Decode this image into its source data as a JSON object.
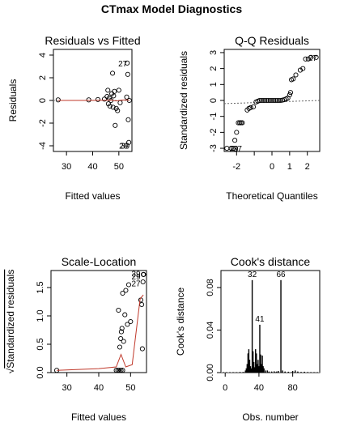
{
  "page_title": "CTmax Model Diagnostics",
  "chart_data": [
    {
      "id": "rvf",
      "type": "scatter",
      "title": "Residuals vs Fitted",
      "xlabel": "Fitted values",
      "ylabel": "Residuals",
      "xlim": [
        25,
        55
      ],
      "ylim": [
        -4.5,
        4.5
      ],
      "xticks": [
        30,
        40,
        50
      ],
      "yticks": [
        -4,
        -2,
        0,
        2,
        4
      ],
      "hline": 0,
      "points": [
        {
          "x": 26.8,
          "y": 0.05
        },
        {
          "x": 38.5,
          "y": 0.05
        },
        {
          "x": 42.0,
          "y": 0.08
        },
        {
          "x": 44.5,
          "y": 0.12
        },
        {
          "x": 45.5,
          "y": 0.35
        },
        {
          "x": 45.8,
          "y": 0.9
        },
        {
          "x": 46.0,
          "y": -0.3
        },
        {
          "x": 46.3,
          "y": 0.2
        },
        {
          "x": 46.6,
          "y": -0.5
        },
        {
          "x": 47.0,
          "y": 0.0
        },
        {
          "x": 47.3,
          "y": 0.6
        },
        {
          "x": 47.6,
          "y": 2.4
        },
        {
          "x": 47.8,
          "y": -0.6
        },
        {
          "x": 48.0,
          "y": 0.4
        },
        {
          "x": 48.3,
          "y": 0.8
        },
        {
          "x": 48.6,
          "y": -2.2
        },
        {
          "x": 49.0,
          "y": -0.7
        },
        {
          "x": 49.5,
          "y": -0.9
        },
        {
          "x": 50.0,
          "y": 0.9
        },
        {
          "x": 50.5,
          "y": -0.2
        },
        {
          "x": 53.0,
          "y": 0.3
        },
        {
          "x": 53.2,
          "y": 3.3
        },
        {
          "x": 53.4,
          "y": 2.3
        },
        {
          "x": 53.6,
          "y": -1.7
        },
        {
          "x": 53.8,
          "y": -3.7
        },
        {
          "x": 54.0,
          "y": 0.0
        }
      ],
      "smooth": [
        {
          "x": 26.8,
          "y": 0.0
        },
        {
          "x": 38.5,
          "y": 0.0
        },
        {
          "x": 44.5,
          "y": 0.02
        },
        {
          "x": 47.0,
          "y": 0.03
        },
        {
          "x": 49.0,
          "y": -0.04
        },
        {
          "x": 51.0,
          "y": 0.03
        },
        {
          "x": 53.0,
          "y": 0.04
        },
        {
          "x": 54.0,
          "y": 0.02
        }
      ],
      "annotations": [
        {
          "text": "27",
          "x": 51.5,
          "y": 3.3
        },
        {
          "text": "29",
          "x": 51.8,
          "y": -3.95
        },
        {
          "text": "39",
          "x": 52.4,
          "y": -3.95
        }
      ]
    },
    {
      "id": "qq",
      "type": "scatter",
      "title": "Q-Q Residuals",
      "xlabel": "Theoretical Quantiles",
      "ylabel": "Standardized residuals",
      "xlim": [
        -2.7,
        2.7
      ],
      "ylim": [
        -3.2,
        3.2
      ],
      "xticks": [
        -2,
        -1,
        0,
        1,
        2
      ],
      "xtick_labels": [
        "-2",
        "",
        "0",
        "1",
        "2"
      ],
      "yticks": [
        -3,
        -2,
        -1,
        0,
        1,
        2,
        3
      ],
      "yticks_labels": [
        "-3",
        "-2",
        "-1",
        "0",
        "1",
        "2",
        "3"
      ],
      "refline": [
        [
          -2.7,
          -0.2
        ],
        [
          2.7,
          0.0
        ]
      ],
      "points": [
        {
          "x": -2.55,
          "y": -3.0
        },
        {
          "x": -2.3,
          "y": -3.0
        },
        {
          "x": -2.2,
          "y": -3.0
        },
        {
          "x": -2.1,
          "y": -2.5
        },
        {
          "x": -2.0,
          "y": -2.0
        },
        {
          "x": -1.9,
          "y": -1.4
        },
        {
          "x": -1.82,
          "y": -1.4
        },
        {
          "x": -1.75,
          "y": -1.4
        },
        {
          "x": -1.68,
          "y": -1.4
        },
        {
          "x": -1.4,
          "y": -0.6
        },
        {
          "x": -1.3,
          "y": -0.5
        },
        {
          "x": -1.2,
          "y": -0.45
        },
        {
          "x": -1.05,
          "y": -0.4
        },
        {
          "x": -0.9,
          "y": -0.1
        },
        {
          "x": -0.8,
          "y": -0.05
        },
        {
          "x": -0.7,
          "y": 0.0
        },
        {
          "x": -0.6,
          "y": 0.0
        },
        {
          "x": -0.5,
          "y": 0.0
        },
        {
          "x": -0.4,
          "y": 0.0
        },
        {
          "x": -0.3,
          "y": 0.0
        },
        {
          "x": -0.2,
          "y": 0.0
        },
        {
          "x": -0.1,
          "y": 0.0
        },
        {
          "x": 0.0,
          "y": 0.0
        },
        {
          "x": 0.1,
          "y": 0.0
        },
        {
          "x": 0.2,
          "y": 0.0
        },
        {
          "x": 0.3,
          "y": 0.0
        },
        {
          "x": 0.4,
          "y": 0.0
        },
        {
          "x": 0.5,
          "y": 0.0
        },
        {
          "x": 0.6,
          "y": 0.02
        },
        {
          "x": 0.7,
          "y": 0.05
        },
        {
          "x": 0.8,
          "y": 0.1
        },
        {
          "x": 0.9,
          "y": 0.15
        },
        {
          "x": 1.0,
          "y": 0.35
        },
        {
          "x": 1.05,
          "y": 0.5
        },
        {
          "x": 1.1,
          "y": 1.3
        },
        {
          "x": 1.2,
          "y": 1.35
        },
        {
          "x": 1.35,
          "y": 1.6
        },
        {
          "x": 1.6,
          "y": 1.9
        },
        {
          "x": 1.75,
          "y": 2.0
        },
        {
          "x": 1.9,
          "y": 2.6
        },
        {
          "x": 2.05,
          "y": 2.6
        },
        {
          "x": 2.2,
          "y": 2.7
        },
        {
          "x": 2.5,
          "y": 2.7
        }
      ],
      "annotations": [
        {
          "text": "27",
          "x": 2.3,
          "y": 2.7
        },
        {
          "text": "29",
          "x": -2.15,
          "y": -3.0
        },
        {
          "text": "37",
          "x": -1.95,
          "y": -3.0
        }
      ]
    },
    {
      "id": "sl",
      "type": "scatter",
      "title": "Scale-Location",
      "xlabel": "Fitted values",
      "ylabel": "Standardized residuals",
      "ylabel_prefix": "√",
      "xlim": [
        25,
        55
      ],
      "ylim": [
        0,
        1.8
      ],
      "xticks": [
        30,
        40,
        50
      ],
      "yticks": [
        0.0,
        0.5,
        1.0,
        1.5
      ],
      "ytick_labels": [
        "0.0",
        "0.5",
        "1.0",
        "1.5"
      ],
      "points": [
        {
          "x": 26.8,
          "y": 0.04
        },
        {
          "x": 45.5,
          "y": 0.04
        },
        {
          "x": 46.0,
          "y": 0.04
        },
        {
          "x": 46.5,
          "y": 0.04
        },
        {
          "x": 47.0,
          "y": 0.04
        },
        {
          "x": 47.5,
          "y": 0.04
        },
        {
          "x": 46.2,
          "y": 1.1
        },
        {
          "x": 46.6,
          "y": 0.45
        },
        {
          "x": 46.9,
          "y": 0.6
        },
        {
          "x": 47.1,
          "y": 0.72
        },
        {
          "x": 47.3,
          "y": 0.78
        },
        {
          "x": 47.5,
          "y": 1.4
        },
        {
          "x": 47.8,
          "y": 0.55
        },
        {
          "x": 48.2,
          "y": 1.02
        },
        {
          "x": 48.5,
          "y": 1.45
        },
        {
          "x": 49.0,
          "y": 0.85
        },
        {
          "x": 49.4,
          "y": 1.55
        },
        {
          "x": 50.0,
          "y": 0.9
        },
        {
          "x": 53.2,
          "y": 1.28
        },
        {
          "x": 53.5,
          "y": 1.2
        },
        {
          "x": 53.7,
          "y": 0.42
        },
        {
          "x": 53.9,
          "y": 1.6
        },
        {
          "x": 54.0,
          "y": 1.73
        },
        {
          "x": 54.1,
          "y": 1.73
        }
      ],
      "smooth": [
        {
          "x": 26.8,
          "y": 0.04
        },
        {
          "x": 40.0,
          "y": 0.07
        },
        {
          "x": 45.5,
          "y": 0.1
        },
        {
          "x": 47.0,
          "y": 0.32
        },
        {
          "x": 48.5,
          "y": 0.1
        },
        {
          "x": 50.5,
          "y": 0.14
        },
        {
          "x": 53.0,
          "y": 1.3
        },
        {
          "x": 54.0,
          "y": 1.37
        }
      ],
      "annotations": [
        {
          "text": "39",
          "x": 51.7,
          "y": 1.75
        },
        {
          "text": "29",
          "x": 51.7,
          "y": 1.7
        },
        {
          "text": "27",
          "x": 51.7,
          "y": 1.58
        }
      ]
    },
    {
      "id": "cook",
      "type": "bar",
      "title": "Cook's distance",
      "xlabel": "Obs. number",
      "ylabel": "Cook's distance",
      "xlim": [
        -5,
        112
      ],
      "ylim": [
        0,
        0.096
      ],
      "xticks": [
        0,
        40,
        80
      ],
      "yticks": [
        0.0,
        0.04,
        0.08
      ],
      "ytick_labels": [
        "0.00",
        "0.04",
        "0.08"
      ],
      "bars": [
        {
          "x": 6,
          "y": 0.0003
        },
        {
          "x": 10,
          "y": 0.0004
        },
        {
          "x": 14,
          "y": 0.0003
        },
        {
          "x": 18,
          "y": 0.0005
        },
        {
          "x": 22,
          "y": 0.0006
        },
        {
          "x": 24,
          "y": 0.002
        },
        {
          "x": 25,
          "y": 0.004
        },
        {
          "x": 26,
          "y": 0.008
        },
        {
          "x": 27,
          "y": 0.018
        },
        {
          "x": 28,
          "y": 0.022
        },
        {
          "x": 29,
          "y": 0.012
        },
        {
          "x": 30,
          "y": 0.006
        },
        {
          "x": 31,
          "y": 0.004
        },
        {
          "x": 32,
          "y": 0.087
        },
        {
          "x": 33,
          "y": 0.02
        },
        {
          "x": 34,
          "y": 0.01
        },
        {
          "x": 35,
          "y": 0.005
        },
        {
          "x": 36,
          "y": 0.022
        },
        {
          "x": 37,
          "y": 0.018
        },
        {
          "x": 38,
          "y": 0.008
        },
        {
          "x": 39,
          "y": 0.012
        },
        {
          "x": 40,
          "y": 0.006
        },
        {
          "x": 41,
          "y": 0.045
        },
        {
          "x": 42,
          "y": 0.017
        },
        {
          "x": 43,
          "y": 0.008
        },
        {
          "x": 44,
          "y": 0.016
        },
        {
          "x": 45,
          "y": 0.006
        },
        {
          "x": 46,
          "y": 0.004
        },
        {
          "x": 48,
          "y": 0.002
        },
        {
          "x": 50,
          "y": 0.002
        },
        {
          "x": 52,
          "y": 0.001
        },
        {
          "x": 55,
          "y": 0.001
        },
        {
          "x": 58,
          "y": 0.0012
        },
        {
          "x": 61,
          "y": 0.001
        },
        {
          "x": 63,
          "y": 0.0015
        },
        {
          "x": 66,
          "y": 0.087
        },
        {
          "x": 68,
          "y": 0.002
        },
        {
          "x": 71,
          "y": 0.001
        },
        {
          "x": 75,
          "y": 0.0008
        },
        {
          "x": 80,
          "y": 0.0015
        },
        {
          "x": 83,
          "y": 0.002
        },
        {
          "x": 86,
          "y": 0.001
        },
        {
          "x": 90,
          "y": 0.0006
        },
        {
          "x": 94,
          "y": 0.0008
        },
        {
          "x": 98,
          "y": 0.0005
        },
        {
          "x": 102,
          "y": 0.0004
        },
        {
          "x": 106,
          "y": 0.0004
        }
      ],
      "annotations": [
        {
          "text": "32",
          "x": 32,
          "y": 0.087
        },
        {
          "text": "41",
          "x": 41,
          "y": 0.045
        },
        {
          "text": "66",
          "x": 66,
          "y": 0.087
        }
      ]
    }
  ]
}
